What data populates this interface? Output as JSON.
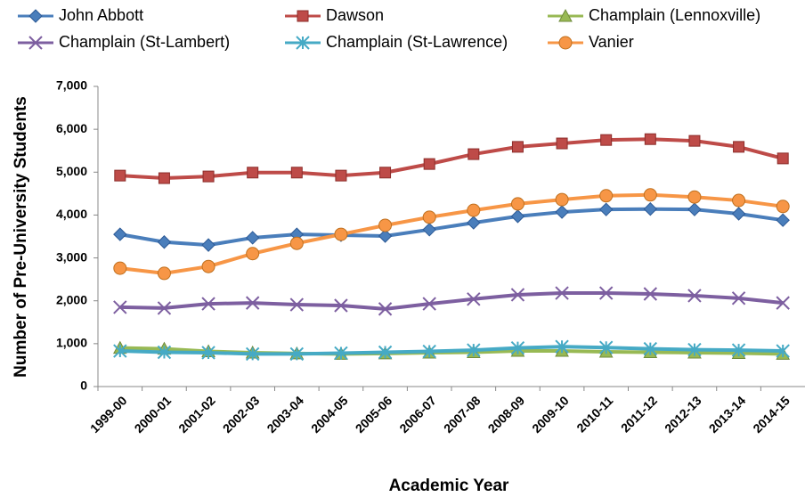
{
  "chart_data": {
    "type": "line",
    "ylabel": "Number of Pre-University Students",
    "xlabel": "Academic Year",
    "categories": [
      "1999-00",
      "2000-01",
      "2001-02",
      "2002-03",
      "2003-04",
      "2004-05",
      "2005-06",
      "2006-07",
      "2007-08",
      "2008-09",
      "2009-10",
      "2010-11",
      "2011-12",
      "2012-13",
      "2013-14",
      "2014-15"
    ],
    "ylim": [
      0,
      7000
    ],
    "yticks": [
      0,
      {
        "value": 1000,
        "label": "1,000"
      },
      {
        "value": 2000,
        "label": "2,000"
      },
      {
        "value": 3000,
        "label": "3,000"
      },
      {
        "value": 4000,
        "label": "4,000"
      },
      {
        "value": 5000,
        "label": "5,000"
      },
      {
        "value": 6000,
        "label": "6,000"
      },
      {
        "value": 7000,
        "label": "7,000"
      }
    ],
    "grid": false,
    "legend": "top",
    "series": [
      {
        "name": "John Abbott",
        "color": "#4a7ebb",
        "marker": "diamond",
        "values": [
          3550,
          3370,
          3300,
          3470,
          3550,
          3530,
          3510,
          3660,
          3820,
          3970,
          4070,
          4130,
          4140,
          4130,
          4030,
          3880
        ]
      },
      {
        "name": "Dawson",
        "color": "#be4b48",
        "marker": "square",
        "values": [
          4920,
          4860,
          4900,
          4990,
          4990,
          4920,
          4990,
          5190,
          5420,
          5590,
          5670,
          5750,
          5770,
          5730,
          5590,
          5320
        ]
      },
      {
        "name": "Champlain (Lennoxville)",
        "color": "#98b954",
        "marker": "triangle",
        "values": [
          900,
          880,
          820,
          790,
          770,
          760,
          770,
          790,
          800,
          830,
          830,
          810,
          800,
          790,
          780,
          760
        ]
      },
      {
        "name": "Champlain (St-Lambert)",
        "color": "#7d5fa0",
        "marker": "x",
        "values": [
          1850,
          1830,
          1930,
          1950,
          1910,
          1890,
          1810,
          1930,
          2040,
          2140,
          2180,
          2180,
          2160,
          2120,
          2060,
          1950
        ]
      },
      {
        "name": "Champlain (St-Lawrence)",
        "color": "#46aac5",
        "marker": "star",
        "values": [
          830,
          800,
          790,
          760,
          760,
          780,
          800,
          820,
          850,
          900,
          930,
          910,
          880,
          860,
          850,
          830
        ]
      },
      {
        "name": "Vanier",
        "color": "#f79646",
        "marker": "circle",
        "values": [
          2760,
          2640,
          2800,
          3100,
          3340,
          3550,
          3760,
          3950,
          4110,
          4260,
          4360,
          4450,
          4470,
          4420,
          4340,
          4200
        ]
      }
    ]
  }
}
